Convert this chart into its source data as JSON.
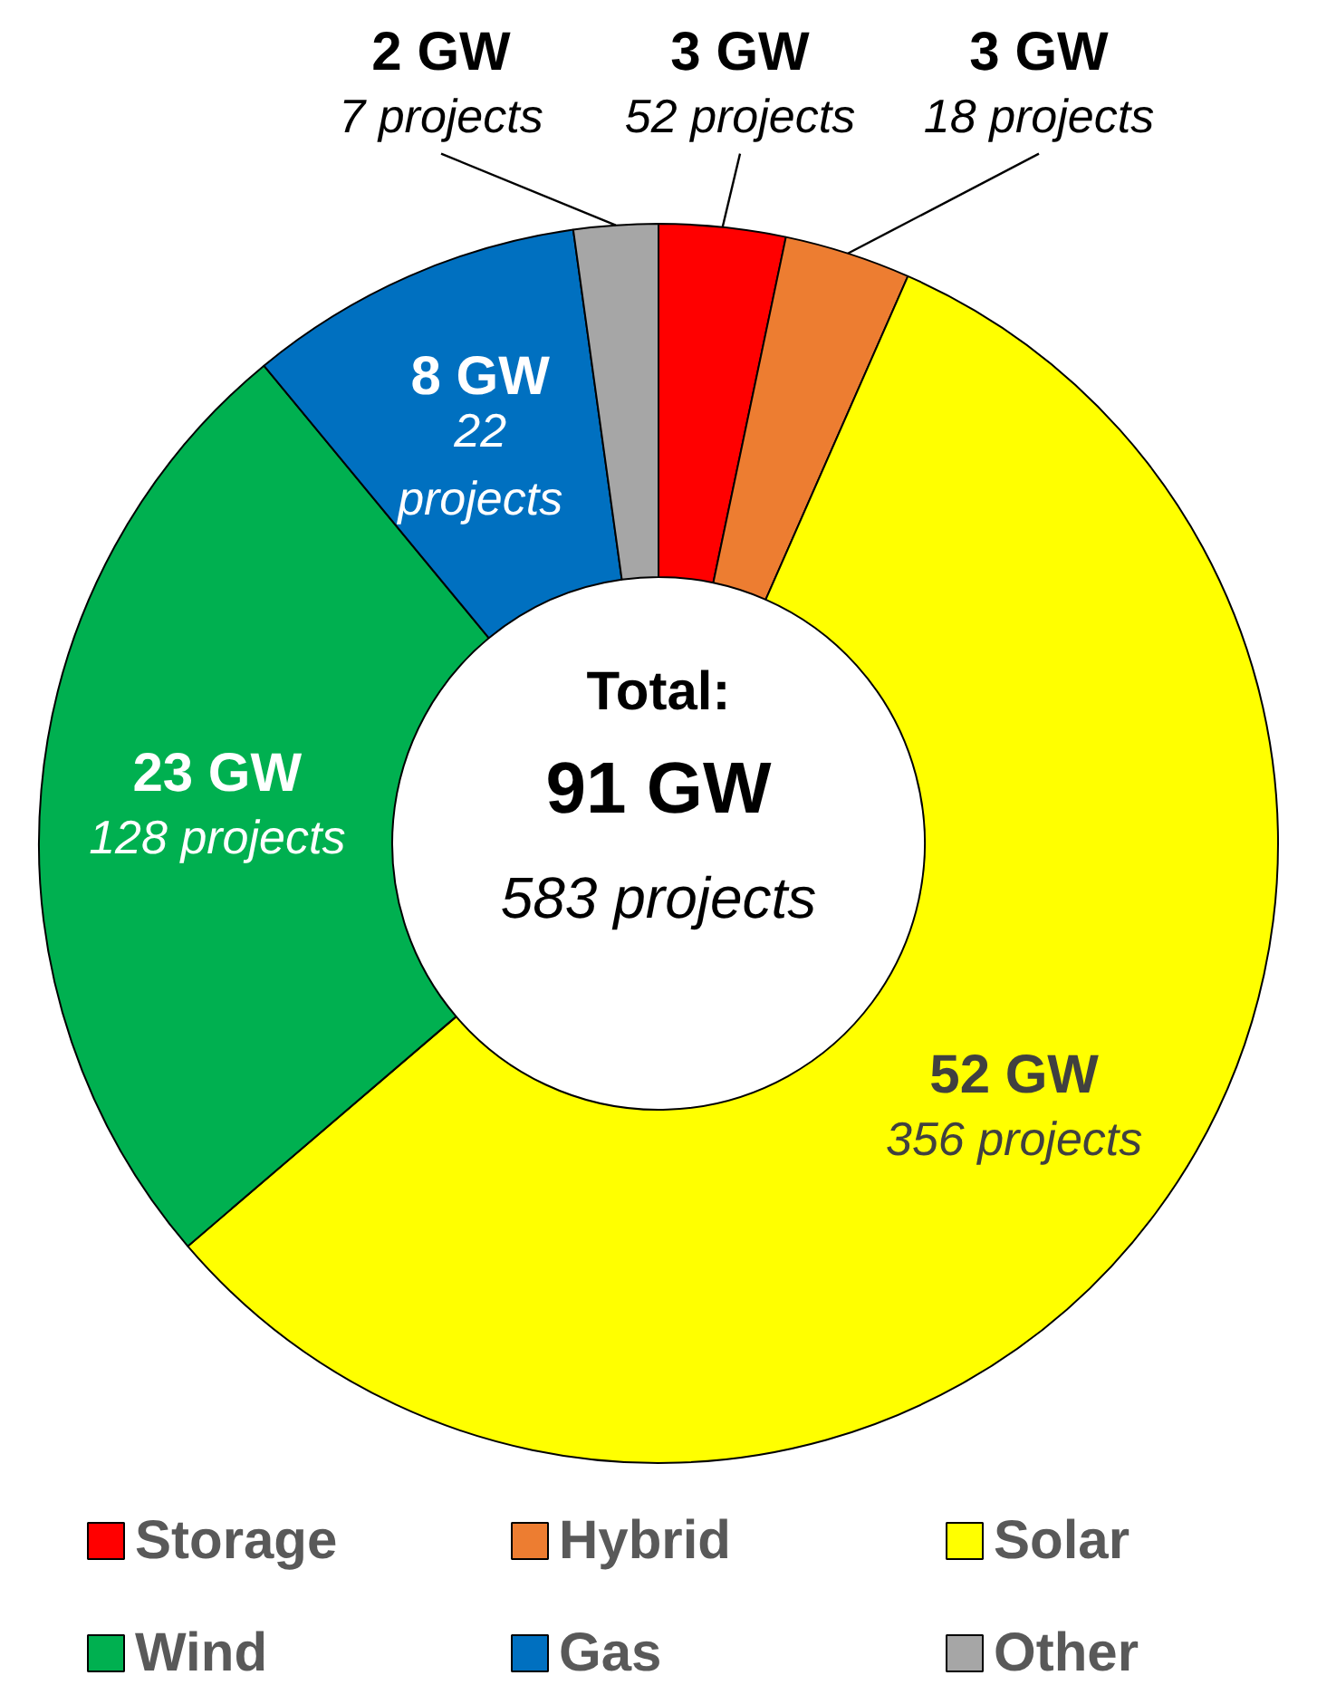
{
  "chart_data": {
    "type": "donut",
    "categories": [
      "Storage",
      "Hybrid",
      "Solar",
      "Wind",
      "Gas",
      "Other"
    ],
    "values": [
      3,
      3,
      52,
      23,
      8,
      2
    ],
    "colors": [
      "#ff0000",
      "#ed7d31",
      "#ffff00",
      "#00b050",
      "#0070c0",
      "#a6a6a6"
    ],
    "value_labels": [
      "3 GW\n52 projects",
      "3 GW\n18 projects",
      "52 GW\n356 projects",
      "23 GW\n128 projects",
      "8 GW\n22\nprojects",
      "2 GW\n7 projects"
    ],
    "annotations": [
      "Total:",
      "91 GW",
      "583 projects"
    ],
    "legend": "bottom"
  }
}
